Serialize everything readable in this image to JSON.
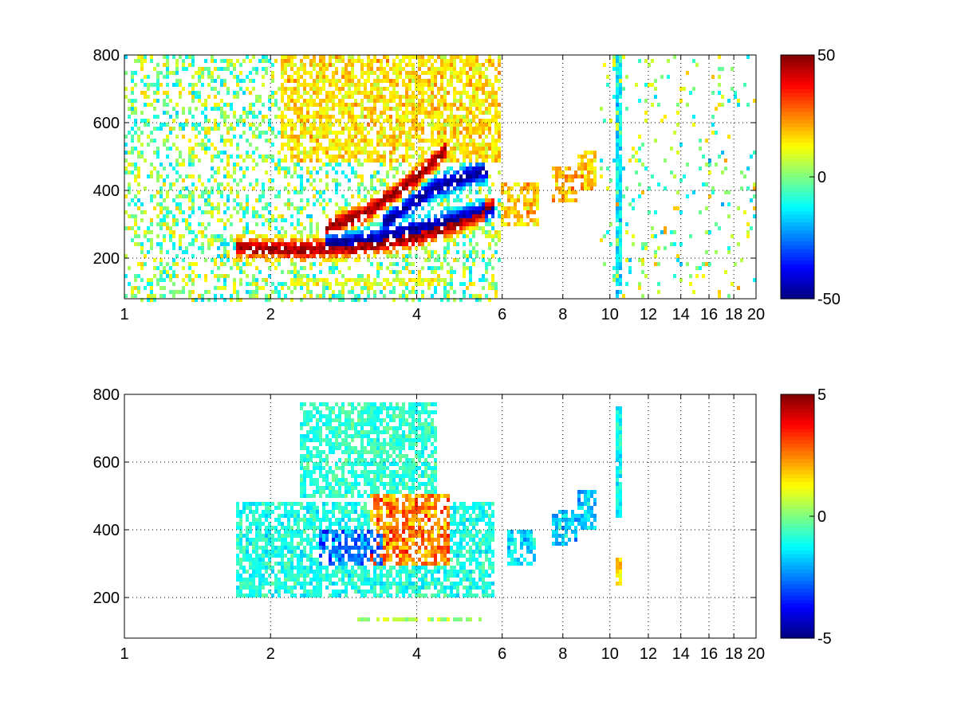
{
  "chart_data": [
    {
      "type": "heatmap",
      "title": "",
      "xlabel": "",
      "ylabel": "",
      "xlim": [
        1,
        20
      ],
      "ylim": [
        80,
        800
      ],
      "x_scale": "log",
      "grid": true,
      "colormap": "jet",
      "x_ticks": [
        1,
        2,
        4,
        6,
        8,
        10,
        12,
        14,
        16,
        18,
        20
      ],
      "x_tick_labels": [
        "1",
        "2",
        "4",
        "6",
        "8",
        "10",
        "12",
        "14",
        "16",
        "18",
        "20"
      ],
      "y_ticks": [
        200,
        400,
        600,
        800
      ],
      "y_tick_labels": [
        "200",
        "400",
        "600",
        "800"
      ],
      "colorbar": {
        "range": [
          -50,
          50
        ],
        "ticks": [
          50,
          0,
          -50
        ],
        "tick_labels": [
          "50",
          "0",
          "-50"
        ]
      },
      "features": [
        {
          "kind": "ridge",
          "sign": "positive",
          "points": [
            [
              1.7,
              230
            ],
            [
              2.3,
              225
            ],
            [
              3.0,
              232
            ],
            [
              4.0,
              262
            ],
            [
              5.0,
              310
            ],
            [
              5.8,
              355
            ]
          ]
        },
        {
          "kind": "ridge",
          "sign": "negative",
          "points": [
            [
              2.6,
              240
            ],
            [
              3.3,
              258
            ],
            [
              4.0,
              285
            ],
            [
              5.0,
              320
            ],
            [
              5.8,
              350
            ]
          ]
        },
        {
          "kind": "ridge",
          "sign": "positive",
          "points": [
            [
              2.6,
              290
            ],
            [
              3.1,
              330
            ],
            [
              3.5,
              380
            ],
            [
              4.0,
              440
            ],
            [
              4.6,
              520
            ]
          ]
        },
        {
          "kind": "ridge",
          "sign": "negative",
          "points": [
            [
              3.4,
              300
            ],
            [
              3.9,
              360
            ],
            [
              4.4,
              410
            ],
            [
              5.0,
              440
            ],
            [
              5.6,
              460
            ]
          ]
        },
        {
          "kind": "blob",
          "x_range": [
            2.1,
            6.0
          ],
          "y_range": [
            480,
            800
          ],
          "value": 15
        },
        {
          "kind": "blob",
          "x_range": [
            6.0,
            7.2
          ],
          "y_range": [
            300,
            420
          ],
          "value": 18
        },
        {
          "kind": "blob",
          "x_range": [
            7.6,
            8.6
          ],
          "y_range": [
            360,
            470
          ],
          "value": 20
        },
        {
          "kind": "blob",
          "x_range": [
            8.6,
            9.4
          ],
          "y_range": [
            400,
            520
          ],
          "value": 18
        },
        {
          "kind": "band",
          "x_range": [
            2.2,
            4.6
          ],
          "y_range": [
            120,
            145
          ],
          "value": 10
        },
        {
          "kind": "stripe",
          "x": 10.4,
          "y_range": [
            100,
            800
          ],
          "value": -15
        },
        {
          "kind": "noise",
          "x_range": [
            9.5,
            20
          ],
          "y_range": [
            80,
            800
          ],
          "density": 0.1
        }
      ]
    },
    {
      "type": "heatmap",
      "title": "",
      "xlabel": "",
      "ylabel": "",
      "xlim": [
        1,
        20
      ],
      "ylim": [
        80,
        800
      ],
      "x_scale": "log",
      "grid": true,
      "colormap": "jet",
      "x_ticks": [
        1,
        2,
        4,
        6,
        8,
        10,
        12,
        14,
        16,
        18,
        20
      ],
      "x_tick_labels": [
        "1",
        "2",
        "4",
        "6",
        "8",
        "10",
        "12",
        "14",
        "16",
        "18",
        "20"
      ],
      "y_ticks": [
        200,
        400,
        600,
        800
      ],
      "y_tick_labels": [
        "200",
        "400",
        "600",
        "800"
      ],
      "colorbar": {
        "range": [
          -5,
          5
        ],
        "ticks": [
          5,
          0,
          -5
        ],
        "tick_labels": [
          "5",
          "0",
          "-5"
        ]
      },
      "features": [
        {
          "kind": "blob",
          "x_range": [
            1.7,
            5.8
          ],
          "y_range": [
            200,
            480
          ],
          "value": -1
        },
        {
          "kind": "blob",
          "x_range": [
            3.2,
            4.7
          ],
          "y_range": [
            290,
            500
          ],
          "value": 2.5
        },
        {
          "kind": "blob",
          "x_range": [
            2.5,
            3.4
          ],
          "y_range": [
            300,
            400
          ],
          "value": -2.5
        },
        {
          "kind": "blob",
          "x_range": [
            2.3,
            4.4
          ],
          "y_range": [
            500,
            780
          ],
          "value": -0.8
        },
        {
          "kind": "blob",
          "x_range": [
            6.1,
            7.0
          ],
          "y_range": [
            300,
            400
          ],
          "value": -1.5
        },
        {
          "kind": "blob",
          "x_range": [
            7.6,
            8.6
          ],
          "y_range": [
            350,
            460
          ],
          "value": -1.7
        },
        {
          "kind": "blob",
          "x_range": [
            8.6,
            9.4
          ],
          "y_range": [
            400,
            520
          ],
          "value": -1.8
        },
        {
          "kind": "band",
          "x_range": [
            3.0,
            5.8
          ],
          "y_range": [
            125,
            145
          ],
          "value": 0.5
        },
        {
          "kind": "stripe",
          "x": 10.4,
          "y_range": [
            430,
            770
          ],
          "value": -1.2
        },
        {
          "kind": "stripe",
          "x": 10.4,
          "y_range": [
            240,
            320
          ],
          "value": 1.5
        }
      ]
    }
  ]
}
